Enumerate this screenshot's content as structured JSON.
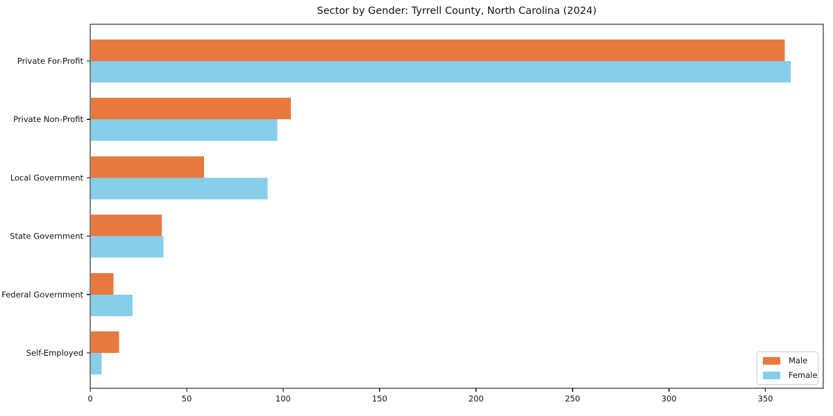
{
  "page": {
    "title": "Sector by Gender: Tyrrell County, North Carolina (2024)"
  },
  "chart_data": {
    "type": "bar",
    "orientation": "horizontal",
    "title": "Sector by Gender: Tyrrell County, North Carolina (2024)",
    "categories": [
      "Private For-Profit",
      "Private Non-Profit",
      "Local Government",
      "State Government",
      "Federal Government",
      "Self-Employed"
    ],
    "series": [
      {
        "name": "Male",
        "color": "#e8793e",
        "values": [
          360,
          104,
          59,
          37,
          12,
          15
        ]
      },
      {
        "name": "Female",
        "color": "#87ceeb",
        "values": [
          363,
          97,
          92,
          38,
          22,
          6
        ]
      }
    ],
    "xlabel": "",
    "ylabel": "",
    "xlim": [
      0,
      380
    ],
    "x_ticks": [
      0,
      50,
      100,
      150,
      200,
      250,
      300,
      350
    ],
    "grid": false,
    "legend_position": "lower right",
    "frame_color": "#000000",
    "background": "#ffffff"
  }
}
